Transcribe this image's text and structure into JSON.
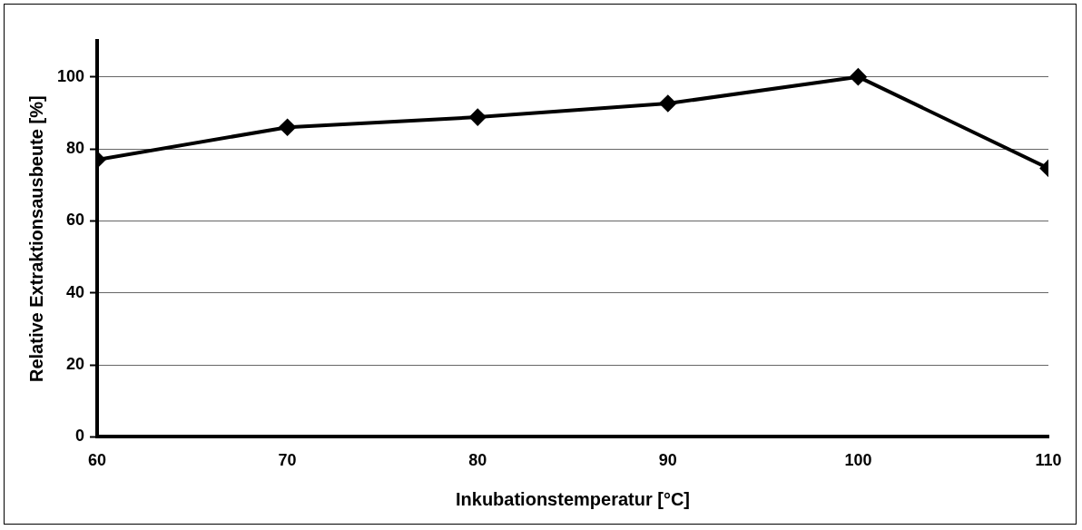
{
  "chart_data": {
    "type": "line",
    "xlabel": "Inkubationstemperatur [°C]",
    "ylabel": "Relative Extraktionsausbeute [%]",
    "x": [
      60,
      70,
      80,
      90,
      100,
      110
    ],
    "series": [
      {
        "color": "#000000",
        "values": [
          77,
          86,
          88.8,
          92.6,
          100,
          74.6
        ]
      }
    ],
    "xlim": [
      60,
      110
    ],
    "xticks": [
      60,
      70,
      80,
      90,
      100,
      110
    ],
    "ylim": [
      0,
      110
    ],
    "yticks": [
      0,
      20,
      40,
      60,
      80,
      100
    ],
    "grid": "y",
    "legend": false,
    "marker": "diamond",
    "line_style": "solid"
  }
}
